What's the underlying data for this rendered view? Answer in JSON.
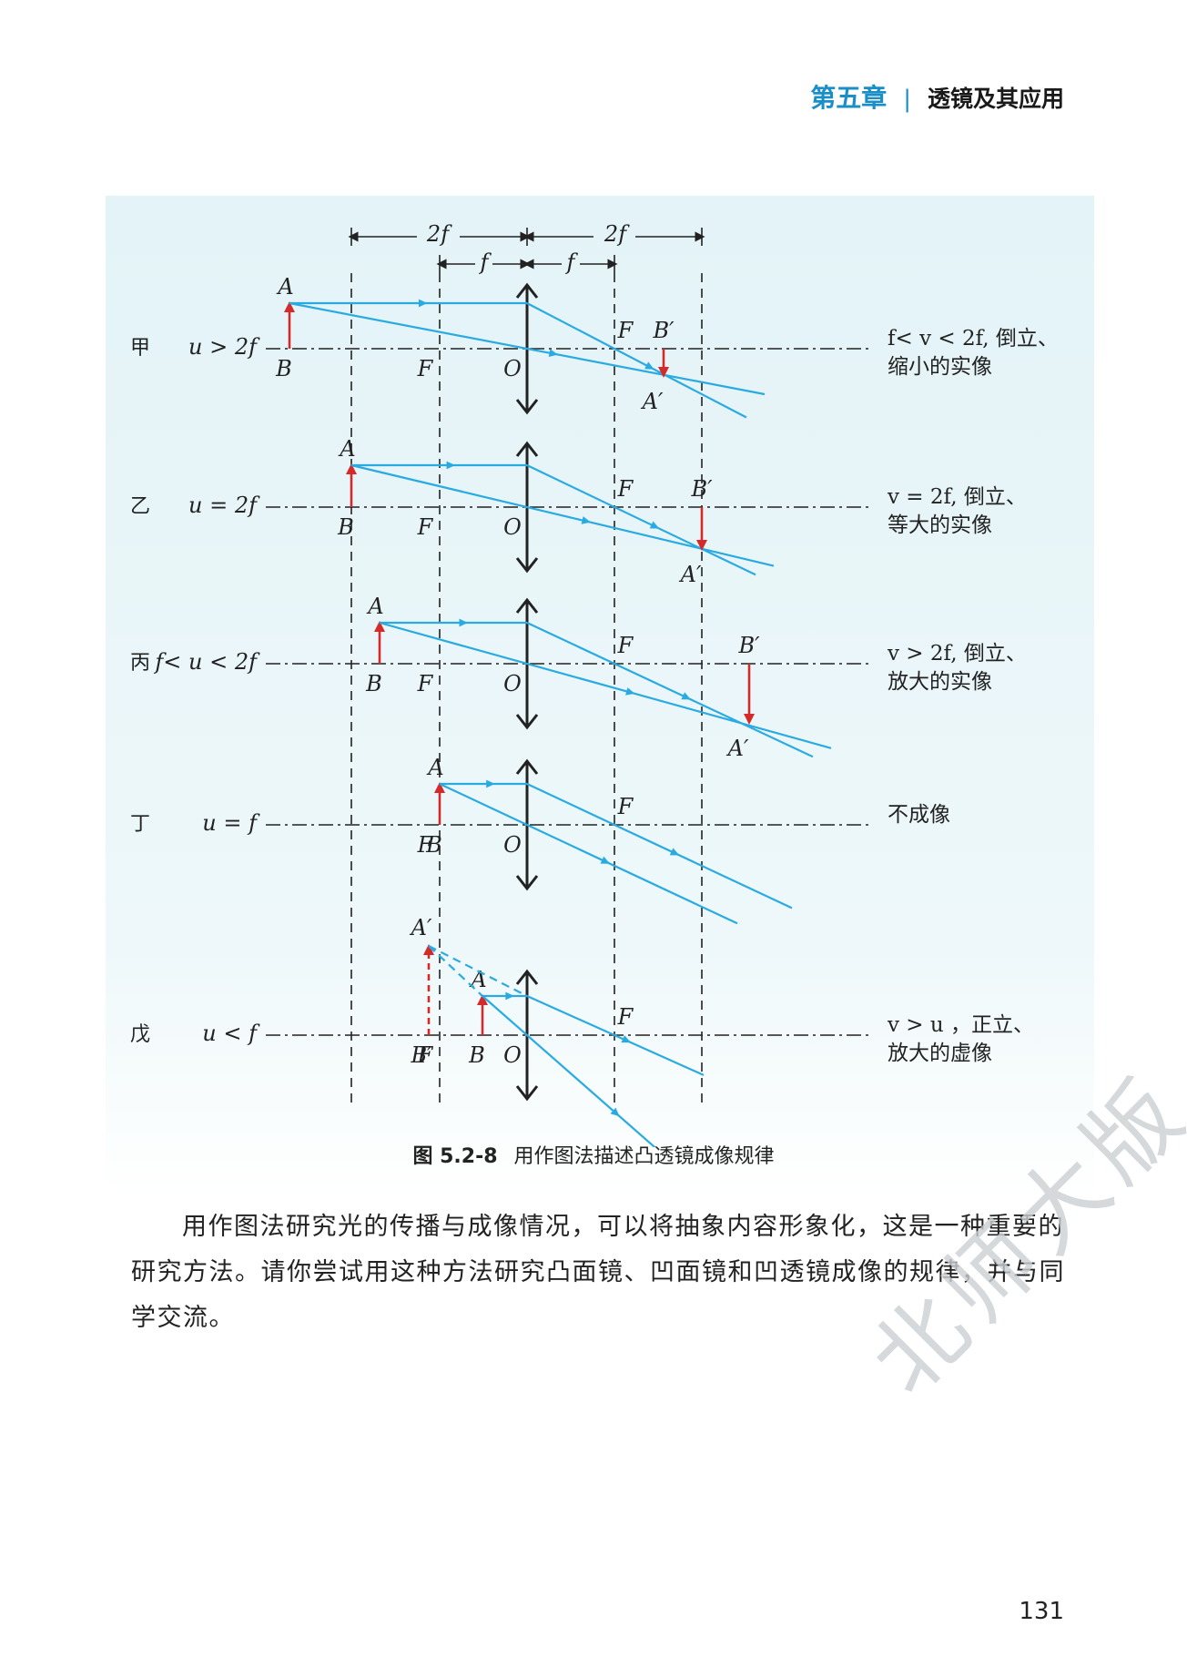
{
  "header": {
    "chapter": "第五章",
    "separator": "|",
    "title": "透镜及其应用"
  },
  "figure": {
    "dim_2f": "2f",
    "dim_f": "f",
    "rows": [
      {
        "case": "甲",
        "cond": "u > 2f",
        "result_line1": "f< v < 2f, 倒立、",
        "result_line2": "缩小的实像"
      },
      {
        "case": "乙",
        "cond": "u = 2f",
        "result_line1": "v = 2f, 倒立、",
        "result_line2": "等大的实像"
      },
      {
        "case": "丙",
        "cond": "f< u < 2f",
        "result_line1": "v > 2f, 倒立、",
        "result_line2": "放大的实像"
      },
      {
        "case": "丁",
        "cond": "u = f",
        "result_line1": "不成像",
        "result_line2": ""
      },
      {
        "case": "戊",
        "cond": "u < f",
        "result_line1": "v > u ，正立、",
        "result_line2": "放大的虚像"
      }
    ],
    "labels": {
      "A": "A",
      "B": "B",
      "F": "F",
      "O": "O",
      "A_prime": "A′",
      "B_prime": "B′"
    },
    "colors": {
      "ray": "#29abe2",
      "object": "#d42a2a",
      "lens": "#222222"
    }
  },
  "caption": {
    "number": "图 5.2-8",
    "text": "用作图法描述凸透镜成像规律"
  },
  "paragraph": "用作图法研究光的传播与成像情况，可以将抽象内容形象化，这是一种重要的研究方法。请你尝试用这种方法研究凸面镜、凹面镜和凹透镜成像的规律，并与同学交流。",
  "watermark": "北师大版",
  "page_number": "131"
}
